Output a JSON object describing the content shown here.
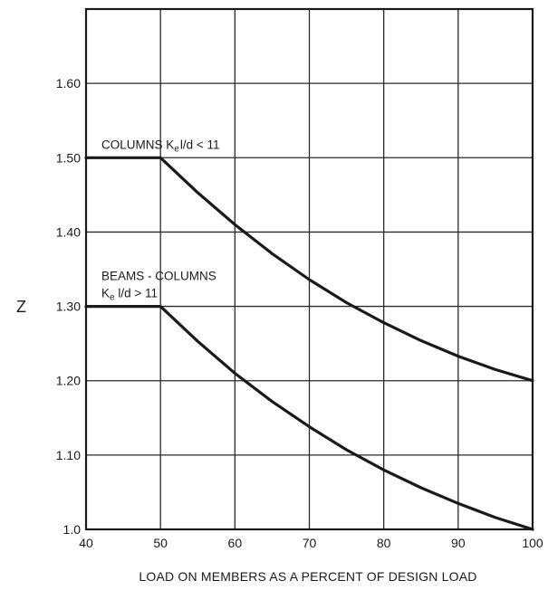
{
  "chart_data": {
    "type": "line",
    "title": "",
    "xlabel": "LOAD ON MEMBERS AS A PERCENT OF DESIGN LOAD",
    "ylabel": "Z",
    "xlim": [
      40,
      100
    ],
    "ylim": [
      1.0,
      1.7
    ],
    "grid": true,
    "x_ticks": [
      40,
      50,
      60,
      70,
      80,
      90,
      100
    ],
    "x_tick_labels": [
      "40",
      "50",
      "60",
      "70",
      "80",
      "90",
      "100"
    ],
    "y_ticks": [
      1.0,
      1.1,
      1.2,
      1.3,
      1.4,
      1.5,
      1.6
    ],
    "y_tick_labels": [
      "1.0",
      "1.10",
      "1.20",
      "1.30",
      "1.40",
      "1.50",
      "1.60"
    ],
    "series": [
      {
        "key": "columns",
        "label_main": "COLUMNS K",
        "label_sub": "e",
        "label_tail": "l/d < 11",
        "x": [
          40,
          50,
          55,
          60,
          65,
          70,
          75,
          80,
          85,
          90,
          95,
          100
        ],
        "y": [
          1.5,
          1.5,
          1.453,
          1.41,
          1.371,
          1.336,
          1.305,
          1.278,
          1.254,
          1.233,
          1.215,
          1.2
        ]
      },
      {
        "key": "beams_columns",
        "label_line1": "BEAMS - COLUMNS",
        "label_main": "K",
        "label_sub": "e",
        "label_tail": " l/d > 11",
        "x": [
          40,
          50,
          55,
          60,
          65,
          70,
          75,
          80,
          85,
          90,
          95,
          100
        ],
        "y": [
          1.3,
          1.3,
          1.253,
          1.21,
          1.172,
          1.138,
          1.107,
          1.08,
          1.056,
          1.035,
          1.016,
          1.0
        ]
      }
    ]
  }
}
